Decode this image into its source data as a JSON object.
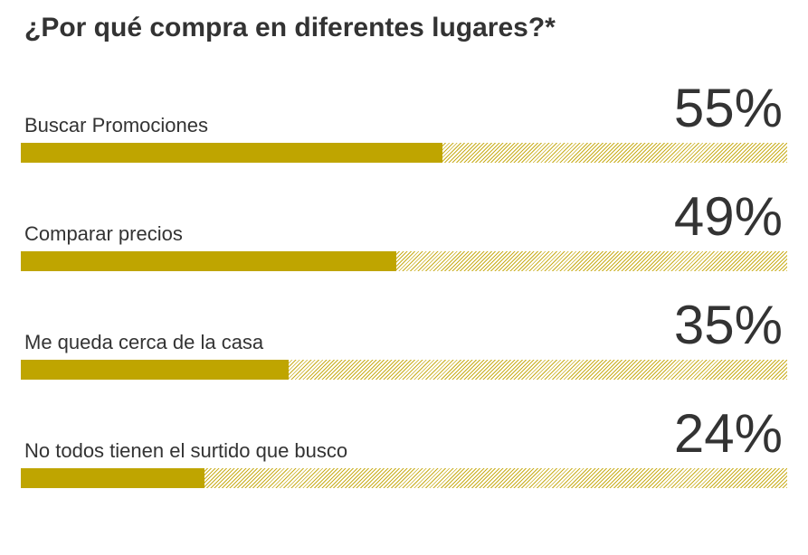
{
  "title": "¿Por qué compra en diferentes lugares?*",
  "colors": {
    "bar_fill": "#bfa500",
    "bar_hatch": "#c9ad1c",
    "text": "#333333"
  },
  "chart_data": {
    "type": "bar",
    "title": "¿Por qué compra en diferentes lugares?*",
    "categories": [
      "Buscar Promociones",
      "Comparar precios",
      "Me queda cerca de la casa",
      "No todos tienen el surtido que busco"
    ],
    "values": [
      55,
      49,
      35,
      24
    ],
    "value_labels": [
      "55%",
      "49%",
      "35%",
      "24%"
    ],
    "xlim": [
      0,
      100
    ],
    "orientation": "horizontal"
  }
}
